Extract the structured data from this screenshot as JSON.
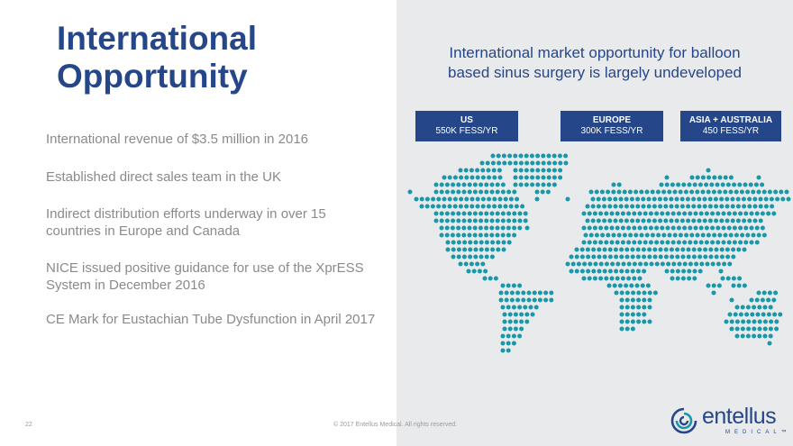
{
  "slide": {
    "title_line1": "International",
    "title_line2": "Opportunity",
    "page_number": "22",
    "copyright": "© 2017 Entellus Medical. All rights reserved."
  },
  "bullets": [
    {
      "lines": [
        "International revenue of $3.5 million in 2016"
      ]
    },
    {
      "lines": [
        "Established direct sales team in the UK"
      ]
    },
    {
      "lines": [
        "Indirect distribution efforts underway in over 15",
        "countries in Europe and Canada"
      ]
    },
    {
      "lines": [
        "NICE issued positive guidance for use of the XprESS",
        "System in December 2016"
      ]
    },
    {
      "lines": [
        "CE Mark for Eustachian Tube Dysfunction in April 2017"
      ]
    }
  ],
  "panel": {
    "subtitle_line1": "International market opportunity for balloon",
    "subtitle_line2": "based sinus surgery is largely undeveloped",
    "regions": [
      {
        "name": "US",
        "value": "550K FESS/YR"
      },
      {
        "name": "EUROPE",
        "value": "300K FESS/YR"
      },
      {
        "name": "ASIA + AUSTRALIA",
        "value": "450 FESS/YR"
      }
    ]
  },
  "logo": {
    "word": "entellus",
    "sub": "MEDICAL™"
  },
  "colors": {
    "brand_blue": "#25478a",
    "map_dot": "#1a97a8",
    "panel_bg": "#e9eaec",
    "body_text": "#8a8a8a"
  }
}
